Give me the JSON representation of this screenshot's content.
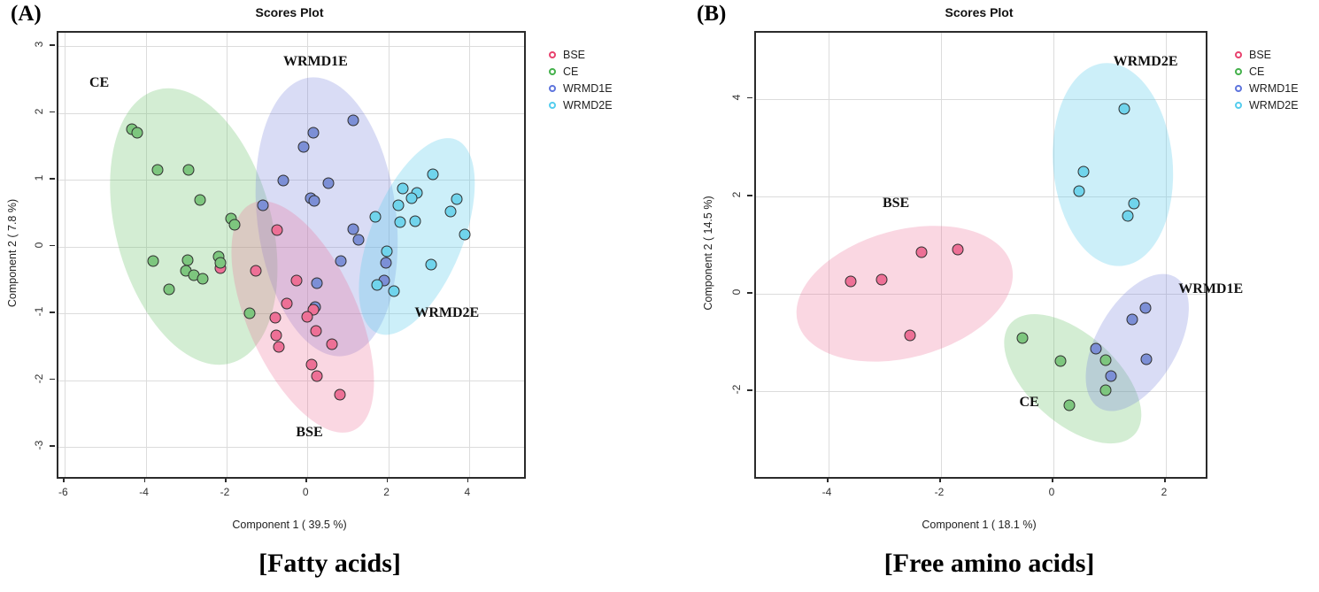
{
  "panels": [
    {
      "letter": "(A)",
      "caption": "[Fatty acids]"
    },
    {
      "letter": "(B)",
      "caption": "[Free amino acids]"
    }
  ],
  "colors": {
    "outline": "#2f2f2f",
    "bse_fill": "#ed7096",
    "bse_ring": "#e8426e",
    "bse_ellipse": "rgba(236,110,150,0.28)",
    "ce_fill": "#7dc67e",
    "ce_ring": "#45b14c",
    "ce_ellipse": "rgba(110,195,110,0.30)",
    "wrmd1e_fill": "#7c8fd6",
    "wrmd1e_ring": "#5f75dd",
    "wrmd1e_ellipse": "rgba(120,130,220,0.28)",
    "wrmd2e_fill": "#70d4ec",
    "wrmd2e_ring": "#55cdee",
    "wrmd2e_ellipse": "rgba(95,205,235,0.32)"
  },
  "chart_data": [
    {
      "type": "scatter",
      "title": "Scores Plot",
      "xlabel": "Component 1 ( 39.5 %)",
      "ylabel": "Component 2 ( 7.8 %)",
      "xlim": [
        -6.16,
        5.36
      ],
      "ylim": [
        -3.45,
        3.2
      ],
      "xticks": [
        -6,
        -4,
        -2,
        0,
        2,
        4
      ],
      "yticks": [
        3,
        2,
        1,
        0,
        -1,
        -2,
        -3
      ],
      "grid": true,
      "legend_position": "right",
      "series": [
        {
          "name": "BSE",
          "fill": "#ed7096",
          "ring": "#e8426e",
          "points": [
            [
              -0.75,
              0.25
            ],
            [
              -2.15,
              -0.33
            ],
            [
              -1.28,
              -0.37
            ],
            [
              -0.26,
              -0.51
            ],
            [
              -0.52,
              -0.86
            ],
            [
              0.15,
              -0.95
            ],
            [
              -0.79,
              -1.06
            ],
            [
              -0.01,
              -1.05
            ],
            [
              0.21,
              -1.26
            ],
            [
              -0.77,
              -1.33
            ],
            [
              -0.7,
              -1.5
            ],
            [
              0.61,
              -1.46
            ],
            [
              0.1,
              -1.77
            ],
            [
              0.23,
              -1.94
            ],
            [
              0.8,
              -2.22
            ]
          ]
        },
        {
          "name": "CE",
          "fill": "#7dc67e",
          "ring": "#45b14c",
          "points": [
            [
              -4.35,
              1.75
            ],
            [
              -4.2,
              1.7
            ],
            [
              -3.7,
              1.15
            ],
            [
              -2.95,
              1.15
            ],
            [
              -2.65,
              0.7
            ],
            [
              -1.9,
              0.42
            ],
            [
              -1.8,
              0.33
            ],
            [
              -3.81,
              -0.22
            ],
            [
              -2.96,
              -0.2
            ],
            [
              -3.0,
              -0.37
            ],
            [
              -2.81,
              -0.43
            ],
            [
              -2.59,
              -0.48
            ],
            [
              -3.42,
              -0.64
            ],
            [
              -2.2,
              -0.15
            ],
            [
              -2.15,
              -0.24
            ],
            [
              -1.43,
              -1.0
            ]
          ]
        },
        {
          "name": "WRMD1E",
          "fill": "#7c8fd6",
          "ring": "#5f75dd",
          "points": [
            [
              1.13,
              1.89
            ],
            [
              0.14,
              1.7
            ],
            [
              -0.1,
              1.49
            ],
            [
              -0.59,
              0.99
            ],
            [
              0.52,
              0.95
            ],
            [
              0.09,
              0.72
            ],
            [
              0.16,
              0.68
            ],
            [
              -1.1,
              0.62
            ],
            [
              1.13,
              0.26
            ],
            [
              1.26,
              0.1
            ],
            [
              0.83,
              -0.22
            ],
            [
              0.23,
              -0.55
            ],
            [
              1.94,
              -0.24
            ],
            [
              1.9,
              -0.51
            ],
            [
              0.2,
              -0.9
            ]
          ]
        },
        {
          "name": "WRMD2E",
          "fill": "#70d4ec",
          "ring": "#55cdee",
          "points": [
            [
              3.1,
              1.08
            ],
            [
              2.35,
              0.87
            ],
            [
              2.72,
              0.8
            ],
            [
              2.57,
              0.72
            ],
            [
              2.25,
              0.62
            ],
            [
              3.7,
              0.71
            ],
            [
              3.55,
              0.53
            ],
            [
              1.67,
              0.44
            ],
            [
              2.3,
              0.37
            ],
            [
              2.66,
              0.38
            ],
            [
              3.89,
              0.18
            ],
            [
              1.97,
              -0.07
            ],
            [
              3.06,
              -0.27
            ],
            [
              1.72,
              -0.57
            ],
            [
              2.13,
              -0.67
            ]
          ]
        }
      ],
      "ellipses": [
        {
          "group": "CE",
          "cx": -2.82,
          "cy": 0.3,
          "rx": 1.93,
          "ry": 2.12,
          "rot": -15,
          "fill": "rgba(110,195,110,0.30)"
        },
        {
          "group": "WRMD1E",
          "cx": 0.48,
          "cy": 0.45,
          "rx": 1.72,
          "ry": 2.1,
          "rot": -7,
          "fill": "rgba(120,130,220,0.28)"
        },
        {
          "group": "BSE",
          "cx": -0.12,
          "cy": -1.05,
          "rx": 1.36,
          "ry": 1.86,
          "rot": -24,
          "fill": "rgba(236,110,150,0.28)"
        },
        {
          "group": "WRMD2E",
          "cx": 2.7,
          "cy": 0.15,
          "rx": 1.14,
          "ry": 1.56,
          "rot": 22,
          "fill": "rgba(95,205,235,0.32)"
        }
      ],
      "group_labels": [
        {
          "text": "CE",
          "x": -5.15,
          "y": 2.45
        },
        {
          "text": "WRMD1E",
          "x": 0.2,
          "y": 2.76
        },
        {
          "text": "WRMD2E",
          "x": 3.45,
          "y": -1.0
        },
        {
          "text": "BSE",
          "x": 0.05,
          "y": -2.79
        }
      ],
      "legend": [
        "BSE",
        "CE",
        "WRMD1E",
        "WRMD2E"
      ]
    },
    {
      "type": "scatter",
      "title": "Scores Plot",
      "xlabel": "Component 1 ( 18.1 %)",
      "ylabel": "Component 2 ( 14.5 %)",
      "xlim": [
        -5.29,
        2.71
      ],
      "ylim": [
        -3.76,
        5.36
      ],
      "xticks": [
        -4,
        -2,
        0,
        2
      ],
      "yticks": [
        4,
        2,
        0,
        -2
      ],
      "grid": true,
      "legend_position": "right",
      "series": [
        {
          "name": "BSE",
          "fill": "#ed7096",
          "ring": "#e8426e",
          "points": [
            [
              -3.6,
              0.25
            ],
            [
              -3.05,
              0.3
            ],
            [
              -2.35,
              0.85
            ],
            [
              -1.7,
              0.9
            ],
            [
              -2.55,
              -0.85
            ]
          ]
        },
        {
          "name": "CE",
          "fill": "#7dc67e",
          "ring": "#45b14c",
          "points": [
            [
              -0.55,
              -0.91
            ],
            [
              0.13,
              -1.38
            ],
            [
              0.93,
              -1.36
            ],
            [
              0.93,
              -1.98
            ],
            [
              0.28,
              -2.29
            ]
          ]
        },
        {
          "name": "WRMD1E",
          "fill": "#7c8fd6",
          "ring": "#5f75dd",
          "points": [
            [
              1.64,
              -0.29
            ],
            [
              1.4,
              -0.53
            ],
            [
              0.76,
              -1.13
            ],
            [
              1.65,
              -1.35
            ],
            [
              1.02,
              -1.69
            ]
          ]
        },
        {
          "name": "WRMD2E",
          "fill": "#70d4ec",
          "ring": "#55cdee",
          "points": [
            [
              1.26,
              3.8
            ],
            [
              0.54,
              2.5
            ],
            [
              0.46,
              2.1
            ],
            [
              1.43,
              1.85
            ],
            [
              1.32,
              1.6
            ]
          ]
        }
      ],
      "ellipses": [
        {
          "group": "BSE",
          "cx": -2.65,
          "cy": 0.0,
          "rx": 1.97,
          "ry": 1.31,
          "rot": -15,
          "fill": "rgba(236,110,150,0.28)"
        },
        {
          "group": "WRMD2E",
          "cx": 1.05,
          "cy": 2.65,
          "rx": 1.06,
          "ry": 2.09,
          "rot": -5,
          "fill": "rgba(95,205,235,0.32)"
        },
        {
          "group": "CE",
          "cx": 0.35,
          "cy": -1.75,
          "rx": 0.79,
          "ry": 1.71,
          "rot": -48,
          "fill": "rgba(110,195,110,0.30)"
        },
        {
          "group": "WRMD1E",
          "cx": 1.5,
          "cy": -1.0,
          "rx": 0.72,
          "ry": 1.55,
          "rot": 30,
          "fill": "rgba(120,130,220,0.28)"
        }
      ],
      "group_labels": [
        {
          "text": "BSE",
          "x": -2.8,
          "y": 1.85
        },
        {
          "text": "WRMD2E",
          "x": 1.64,
          "y": 4.76
        },
        {
          "text": "WRMD1E",
          "x": 2.8,
          "y": 0.1
        },
        {
          "text": "CE",
          "x": -0.43,
          "y": -2.24
        }
      ],
      "legend": [
        "BSE",
        "CE",
        "WRMD1E",
        "WRMD2E"
      ]
    }
  ]
}
